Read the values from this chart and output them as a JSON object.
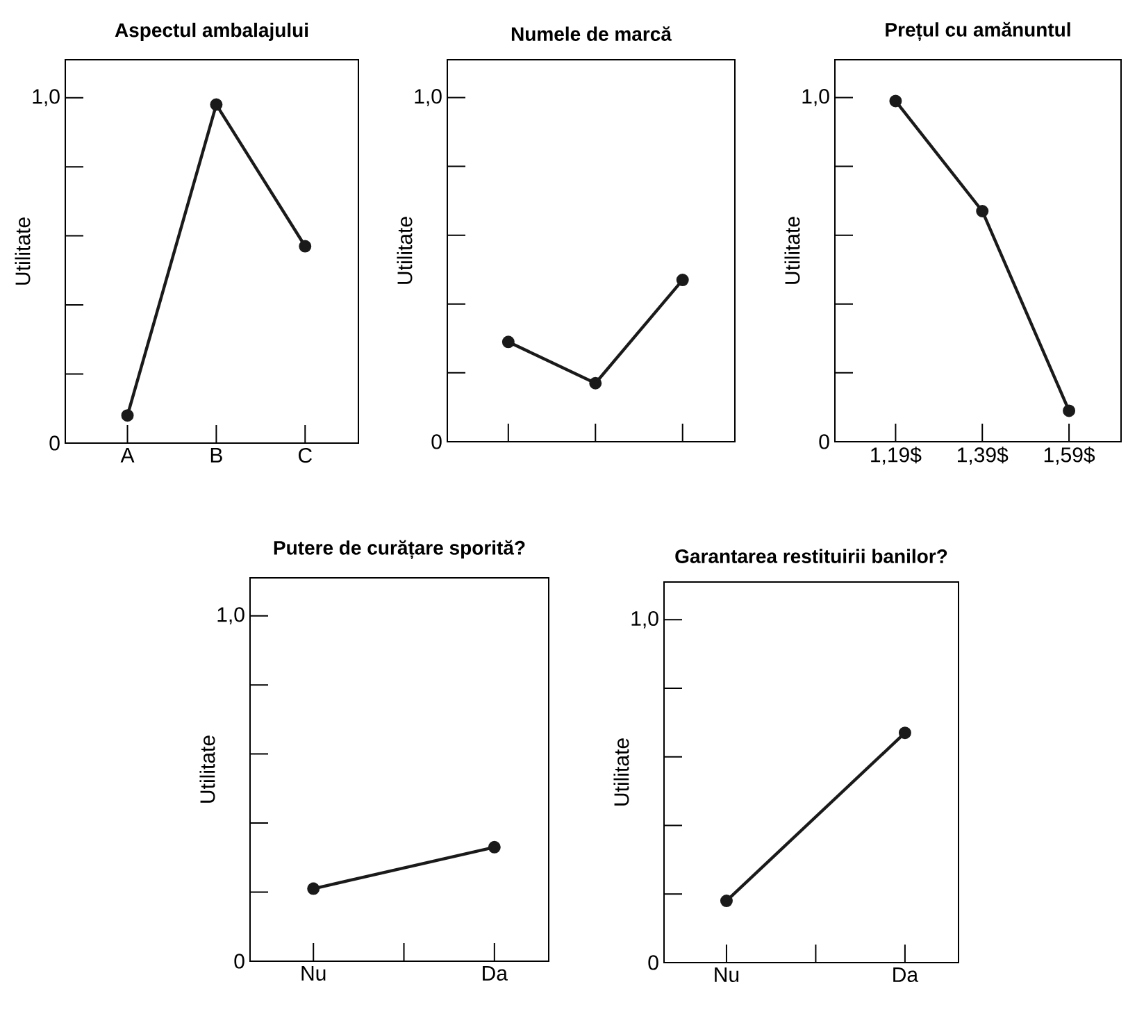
{
  "chart_data": [
    {
      "type": "line",
      "title": "Aspectul ambalajului",
      "ylabel": "Utilitate",
      "categories": [
        "A",
        "B",
        "C"
      ],
      "values": [
        0.08,
        0.98,
        0.57
      ],
      "color": "#1a1a1a",
      "marker": "circle",
      "ylim": [
        0,
        1.11
      ],
      "yticks": [
        0,
        {
          "value": 0.2,
          "label": null
        },
        {
          "value": 0.4,
          "label": null
        },
        {
          "value": 0.6,
          "label": null
        },
        {
          "value": 0.8,
          "label": null
        },
        {
          "value": 1,
          "label": "1,0"
        }
      ]
    },
    {
      "type": "line",
      "title": "Numele de marcă",
      "ylabel": "Utilitate",
      "categories": [
        null,
        null,
        null
      ],
      "values": [
        0.29,
        0.17,
        0.47
      ],
      "color": "#1a1a1a",
      "marker": "circle",
      "ylim": [
        0,
        1.11
      ],
      "yticks": [
        0,
        {
          "value": 0.2,
          "label": null
        },
        {
          "value": 0.4,
          "label": null
        },
        {
          "value": 0.6,
          "label": null
        },
        {
          "value": 0.8,
          "label": null
        },
        {
          "value": 1,
          "label": "1,0"
        }
      ]
    },
    {
      "type": "line",
      "title": "Prețul cu amănuntul",
      "ylabel": "Utilitate",
      "categories": [
        "1,19$",
        "1,39$",
        "1,59$"
      ],
      "values": [
        0.99,
        0.67,
        0.09
      ],
      "color": "#1a1a1a",
      "marker": "circle",
      "ylim": [
        0,
        1.11
      ],
      "yticks": [
        0,
        {
          "value": 0.2,
          "label": null
        },
        {
          "value": 0.4,
          "label": null
        },
        {
          "value": 0.6,
          "label": null
        },
        {
          "value": 0.8,
          "label": null
        },
        {
          "value": 1,
          "label": "1,0"
        }
      ]
    },
    {
      "type": "line",
      "title": "Putere de curățare sporită?",
      "ylabel": "Utilitate",
      "categories": [
        "Nu",
        null,
        "Da"
      ],
      "values": [
        0.21,
        null,
        0.33
      ],
      "color": "#1a1a1a",
      "marker": "circle",
      "ylim": [
        0,
        1.11
      ],
      "yticks": [
        0,
        {
          "value": 0.2,
          "label": null
        },
        {
          "value": 0.4,
          "label": null
        },
        {
          "value": 0.6,
          "label": null
        },
        {
          "value": 0.8,
          "label": null
        },
        {
          "value": 1,
          "label": "1,0"
        }
      ]
    },
    {
      "type": "line",
      "title": "Garantarea restituirii banilor?",
      "ylabel": "Utilitate",
      "categories": [
        "Nu",
        null,
        "Da"
      ],
      "values": [
        0.18,
        null,
        0.67
      ],
      "color": "#1a1a1a",
      "marker": "circle",
      "ylim": [
        0,
        1.11
      ],
      "yticks": [
        0,
        {
          "value": 0.2,
          "label": null
        },
        {
          "value": 0.4,
          "label": null
        },
        {
          "value": 0.6,
          "label": null
        },
        {
          "value": 0.8,
          "label": null
        },
        {
          "value": 1,
          "label": "1,0"
        }
      ]
    }
  ]
}
